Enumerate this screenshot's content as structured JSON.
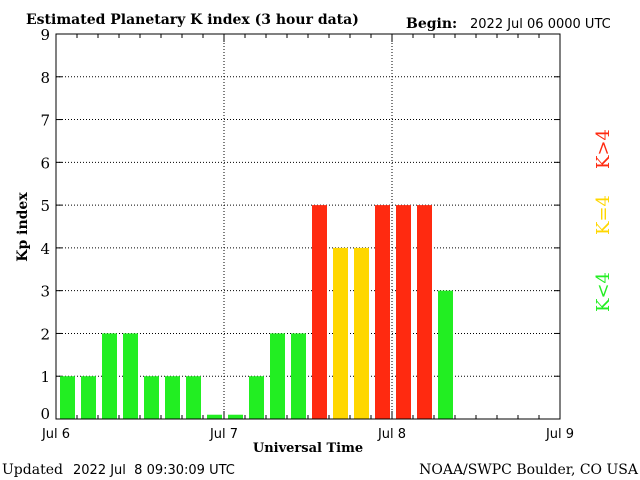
{
  "header": {
    "title": "Estimated Planetary K index (3 hour data)",
    "begin_label": "Begin:",
    "begin_value": "2022 Jul 06 0000 UTC"
  },
  "footer": {
    "updated_label": "Updated",
    "updated_value": "2022 Jul  8 09:30:09 UTC",
    "credit": "NOAA/SWPC Boulder, CO USA"
  },
  "legend": {
    "items": [
      {
        "label": "K<4",
        "color": "#22ee22"
      },
      {
        "label": "K=4",
        "color": "#ffd700"
      },
      {
        "label": "K>4",
        "color": "#ff2a10"
      }
    ]
  },
  "chart_data": {
    "type": "bar",
    "title": "Estimated Planetary K index (3 hour data)",
    "xlabel": "Universal Time",
    "ylabel": "Kp index",
    "ylim": [
      0,
      9
    ],
    "yticks": [
      0,
      1,
      2,
      3,
      4,
      5,
      6,
      7,
      8,
      9
    ],
    "x_ticks": [
      "Jul 6",
      "Jul 7",
      "Jul 8",
      "Jul 9"
    ],
    "slots_per_day": 8,
    "days": 3,
    "grid": true,
    "legend_position": "right",
    "values": [
      1,
      1,
      2,
      2,
      1,
      1,
      1,
      0.1,
      0.1,
      1,
      2,
      2,
      5,
      4,
      4,
      5,
      5,
      5,
      3
    ],
    "colors": {
      "below": "#22ee22",
      "equal": "#ffd700",
      "above": "#ff2a10"
    }
  }
}
